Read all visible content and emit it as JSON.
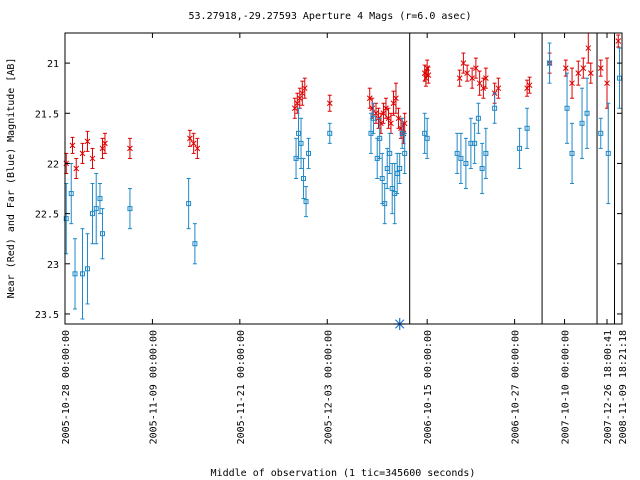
{
  "chart_data": {
    "type": "scatter",
    "title": "53.27918,-29.27593   Aperture 4 Mags (r=6.0 asec)",
    "xlabel": "Middle of observation (1 tic=345600 seconds)",
    "ylabel": "Near (Red) and Far (Blue) Magnitude [AB]",
    "ylim": [
      23.6,
      20.7
    ],
    "y_inverted": true,
    "yticks": [
      21,
      21.5,
      22,
      22.5,
      23,
      23.5
    ],
    "ytick_labels": [
      "21",
      "21.5",
      "22",
      "22.5",
      "23",
      "23.5"
    ],
    "x_axis_units": "tics (1 tic = 345600 s) since 2005-10-28 00:00:00",
    "xlim": [
      0,
      22.3
    ],
    "xticks": [
      {
        "x": 0,
        "label": "2005-10-28 00:00:00"
      },
      {
        "x": 3.5,
        "label": "2005-11-09 00:00:00"
      },
      {
        "x": 7,
        "label": "2005-11-21 00:00:00"
      },
      {
        "x": 10.5,
        "label": "2005-12-03 00:00:00"
      },
      {
        "x": 14.5,
        "label": "2006-10-15 00:00:00"
      },
      {
        "x": 18,
        "label": "2006-10-27 00:00:00"
      },
      {
        "x": 20,
        "label": "2007-10-10 00:00:00"
      },
      {
        "x": 21.7,
        "label": "2007-12-26 18:00:41"
      },
      {
        "x": 22.3,
        "label": "2008-11-09 18:21:18"
      }
    ],
    "segment_breaks": [
      13.8,
      19.1,
      21.3,
      22.0
    ],
    "marker": {
      "x": 13.4,
      "y": 23.6,
      "color": "#1f6fd0"
    },
    "series": [
      {
        "marker": "x",
        "color": "#dd0000",
        "points": [
          {
            "x": 0.05,
            "y": 22.0,
            "err": 0.1
          },
          {
            "x": 0.3,
            "y": 21.82,
            "err": 0.08
          },
          {
            "x": 0.45,
            "y": 22.05,
            "err": 0.1
          },
          {
            "x": 0.7,
            "y": 21.9,
            "err": 0.1
          },
          {
            "x": 0.9,
            "y": 21.78,
            "err": 0.1
          },
          {
            "x": 1.1,
            "y": 21.95,
            "err": 0.1
          },
          {
            "x": 1.5,
            "y": 21.85,
            "err": 0.1
          },
          {
            "x": 1.6,
            "y": 21.8,
            "err": 0.1
          },
          {
            "x": 2.6,
            "y": 21.85,
            "err": 0.1
          },
          {
            "x": 5.0,
            "y": 21.75,
            "err": 0.08
          },
          {
            "x": 5.15,
            "y": 21.8,
            "err": 0.1
          },
          {
            "x": 5.3,
            "y": 21.85,
            "err": 0.1
          },
          {
            "x": 9.2,
            "y": 21.45,
            "err": 0.1
          },
          {
            "x": 9.3,
            "y": 21.4,
            "err": 0.1
          },
          {
            "x": 9.4,
            "y": 21.35,
            "err": 0.1
          },
          {
            "x": 9.5,
            "y": 21.3,
            "err": 0.12
          },
          {
            "x": 9.6,
            "y": 21.25,
            "err": 0.1
          },
          {
            "x": 10.6,
            "y": 21.4,
            "err": 0.08
          },
          {
            "x": 12.2,
            "y": 21.35,
            "err": 0.1
          },
          {
            "x": 12.3,
            "y": 21.45,
            "err": 0.1
          },
          {
            "x": 12.45,
            "y": 21.5,
            "err": 0.1
          },
          {
            "x": 12.55,
            "y": 21.55,
            "err": 0.1
          },
          {
            "x": 12.65,
            "y": 21.6,
            "err": 0.1
          },
          {
            "x": 12.75,
            "y": 21.5,
            "err": 0.1
          },
          {
            "x": 12.85,
            "y": 21.45,
            "err": 0.1
          },
          {
            "x": 12.95,
            "y": 21.55,
            "err": 0.1
          },
          {
            "x": 13.05,
            "y": 21.6,
            "err": 0.1
          },
          {
            "x": 13.15,
            "y": 21.4,
            "err": 0.12
          },
          {
            "x": 13.25,
            "y": 21.35,
            "err": 0.15
          },
          {
            "x": 13.35,
            "y": 21.55,
            "err": 0.1
          },
          {
            "x": 13.45,
            "y": 21.65,
            "err": 0.1
          },
          {
            "x": 13.55,
            "y": 21.7,
            "err": 0.1
          },
          {
            "x": 13.6,
            "y": 21.6,
            "err": 0.1
          },
          {
            "x": 14.4,
            "y": 21.1,
            "err": 0.08
          },
          {
            "x": 14.45,
            "y": 21.15,
            "err": 0.08
          },
          {
            "x": 14.5,
            "y": 21.05,
            "err": 0.08
          },
          {
            "x": 14.55,
            "y": 21.12,
            "err": 0.08
          },
          {
            "x": 15.8,
            "y": 21.15,
            "err": 0.08
          },
          {
            "x": 15.95,
            "y": 21.0,
            "err": 0.1
          },
          {
            "x": 16.1,
            "y": 21.1,
            "err": 0.08
          },
          {
            "x": 16.3,
            "y": 21.15,
            "err": 0.1
          },
          {
            "x": 16.45,
            "y": 21.05,
            "err": 0.1
          },
          {
            "x": 16.6,
            "y": 21.2,
            "err": 0.12
          },
          {
            "x": 16.75,
            "y": 21.25,
            "err": 0.1
          },
          {
            "x": 16.85,
            "y": 21.15,
            "err": 0.1
          },
          {
            "x": 17.2,
            "y": 21.3,
            "err": 0.1
          },
          {
            "x": 17.35,
            "y": 21.25,
            "err": 0.1
          },
          {
            "x": 18.5,
            "y": 21.25,
            "err": 0.08
          },
          {
            "x": 18.6,
            "y": 21.22,
            "err": 0.08
          },
          {
            "x": 19.4,
            "y": 21.0,
            "err": 0.1
          },
          {
            "x": 20.05,
            "y": 21.05,
            "err": 0.08
          },
          {
            "x": 20.3,
            "y": 21.2,
            "err": 0.15
          },
          {
            "x": 20.55,
            "y": 21.1,
            "err": 0.12
          },
          {
            "x": 20.75,
            "y": 21.05,
            "err": 0.1
          },
          {
            "x": 20.95,
            "y": 20.85,
            "err": 0.15
          },
          {
            "x": 21.05,
            "y": 21.1,
            "err": 0.1
          },
          {
            "x": 21.45,
            "y": 21.05,
            "err": 0.08
          },
          {
            "x": 21.7,
            "y": 21.2,
            "err": 0.25
          },
          {
            "x": 22.15,
            "y": 20.78,
            "err": 0.06
          }
        ]
      },
      {
        "marker": "square",
        "color": "#1f88c8",
        "points": [
          {
            "x": 0.05,
            "y": 22.55,
            "err": 0.35
          },
          {
            "x": 0.25,
            "y": 22.3,
            "err": 0.3
          },
          {
            "x": 0.4,
            "y": 23.1,
            "err": 0.35
          },
          {
            "x": 0.7,
            "y": 23.1,
            "err": 0.45
          },
          {
            "x": 0.9,
            "y": 23.05,
            "err": 0.35
          },
          {
            "x": 1.1,
            "y": 22.5,
            "err": 0.3
          },
          {
            "x": 1.25,
            "y": 22.45,
            "err": 0.35
          },
          {
            "x": 1.4,
            "y": 22.35,
            "err": 0.15
          },
          {
            "x": 1.5,
            "y": 22.7,
            "err": 0.25
          },
          {
            "x": 2.6,
            "y": 22.45,
            "err": 0.2
          },
          {
            "x": 4.95,
            "y": 22.4,
            "err": 0.25
          },
          {
            "x": 5.2,
            "y": 22.8,
            "err": 0.2
          },
          {
            "x": 9.25,
            "y": 21.95,
            "err": 0.2
          },
          {
            "x": 9.35,
            "y": 21.7,
            "err": 0.25
          },
          {
            "x": 9.45,
            "y": 21.8,
            "err": 0.25
          },
          {
            "x": 9.55,
            "y": 22.15,
            "err": 0.2
          },
          {
            "x": 9.65,
            "y": 22.38,
            "err": 0.15
          },
          {
            "x": 9.75,
            "y": 21.9,
            "err": 0.15
          },
          {
            "x": 10.6,
            "y": 21.7,
            "err": 0.1
          },
          {
            "x": 12.25,
            "y": 21.7,
            "err": 0.2
          },
          {
            "x": 12.35,
            "y": 21.55,
            "err": 0.15
          },
          {
            "x": 12.5,
            "y": 21.95,
            "err": 0.2
          },
          {
            "x": 12.6,
            "y": 21.75,
            "err": 0.2
          },
          {
            "x": 12.7,
            "y": 22.15,
            "err": 0.25
          },
          {
            "x": 12.8,
            "y": 22.4,
            "err": 0.2
          },
          {
            "x": 12.9,
            "y": 22.05,
            "err": 0.2
          },
          {
            "x": 13.0,
            "y": 21.9,
            "err": 0.2
          },
          {
            "x": 13.1,
            "y": 22.25,
            "err": 0.25
          },
          {
            "x": 13.2,
            "y": 22.3,
            "err": 0.3
          },
          {
            "x": 13.3,
            "y": 22.1,
            "err": 0.2
          },
          {
            "x": 13.4,
            "y": 22.05,
            "err": 0.15
          },
          {
            "x": 13.5,
            "y": 21.7,
            "err": 0.15
          },
          {
            "x": 13.6,
            "y": 21.9,
            "err": 0.2
          },
          {
            "x": 14.4,
            "y": 21.7,
            "err": 0.2
          },
          {
            "x": 14.5,
            "y": 21.75,
            "err": 0.2
          },
          {
            "x": 15.7,
            "y": 21.9,
            "err": 0.2
          },
          {
            "x": 15.85,
            "y": 21.95,
            "err": 0.25
          },
          {
            "x": 16.05,
            "y": 22.0,
            "err": 0.25
          },
          {
            "x": 16.25,
            "y": 21.8,
            "err": 0.25
          },
          {
            "x": 16.4,
            "y": 21.8,
            "err": 0.2
          },
          {
            "x": 16.55,
            "y": 21.55,
            "err": 0.15
          },
          {
            "x": 16.7,
            "y": 22.05,
            "err": 0.25
          },
          {
            "x": 16.85,
            "y": 21.9,
            "err": 0.25
          },
          {
            "x": 17.2,
            "y": 21.45,
            "err": 0.15
          },
          {
            "x": 18.2,
            "y": 21.85,
            "err": 0.2
          },
          {
            "x": 18.5,
            "y": 21.65,
            "err": 0.2
          },
          {
            "x": 19.4,
            "y": 21.0,
            "err": 0.2
          },
          {
            "x": 20.1,
            "y": 21.45,
            "err": 0.35
          },
          {
            "x": 20.3,
            "y": 21.9,
            "err": 0.3
          },
          {
            "x": 20.7,
            "y": 21.6,
            "err": 0.35
          },
          {
            "x": 20.9,
            "y": 21.5,
            "err": 0.35
          },
          {
            "x": 21.45,
            "y": 21.7,
            "err": 0.15
          },
          {
            "x": 21.75,
            "y": 21.9,
            "err": 0.5
          },
          {
            "x": 22.2,
            "y": 21.15,
            "err": 0.3
          }
        ]
      }
    ]
  }
}
